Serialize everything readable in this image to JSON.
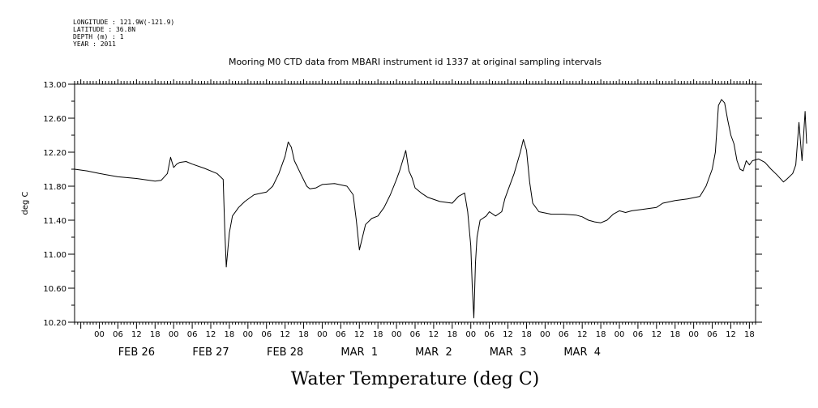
{
  "metadata": {
    "longitude": "LONGITUDE : 121.9W(-121.9)",
    "latitude": "LATITUDE : 36.8N",
    "depth": "DEPTH (m) : 1",
    "year": "YEAR : 2011"
  },
  "chart_data": {
    "type": "line",
    "title": "Mooring M0 CTD data from MBARI instrument id 1337 at original sampling intervals",
    "xlabel": "Water Temperature (deg C)",
    "ylabel": "deg C",
    "ylim": [
      10.2,
      13.0
    ],
    "xlim_hours": [
      -8,
      212
    ],
    "yticks": [
      "13.00",
      "12.60",
      "12.20",
      "11.80",
      "11.40",
      "11.00",
      "10.60",
      "10.20"
    ],
    "hour_tick_labels": [
      "00",
      "06",
      "12",
      "18"
    ],
    "day_labels": [
      "FEB 26",
      "FEB 27",
      "FEB 28",
      "MAR  1",
      "MAR  2",
      "MAR  3",
      "MAR  4"
    ],
    "grid": false,
    "series": [
      {
        "points": [
          [
            -8,
            12.0
          ],
          [
            -4,
            11.98
          ],
          [
            0,
            11.95
          ],
          [
            6,
            11.91
          ],
          [
            12,
            11.89
          ],
          [
            18,
            11.86
          ],
          [
            20,
            11.87
          ],
          [
            22,
            11.95
          ],
          [
            23,
            12.14
          ],
          [
            24,
            12.02
          ],
          [
            25,
            12.06
          ],
          [
            26,
            12.08
          ],
          [
            28,
            12.09
          ],
          [
            30,
            12.06
          ],
          [
            34,
            12.01
          ],
          [
            38,
            11.95
          ],
          [
            40,
            11.88
          ],
          [
            40.5,
            11.3
          ],
          [
            41,
            10.85
          ],
          [
            41.5,
            11.05
          ],
          [
            42,
            11.25
          ],
          [
            43,
            11.45
          ],
          [
            45,
            11.55
          ],
          [
            47,
            11.62
          ],
          [
            50,
            11.7
          ],
          [
            54,
            11.73
          ],
          [
            56,
            11.8
          ],
          [
            58,
            11.95
          ],
          [
            60,
            12.15
          ],
          [
            61,
            12.32
          ],
          [
            62,
            12.26
          ],
          [
            63,
            12.1
          ],
          [
            65,
            11.95
          ],
          [
            67,
            11.8
          ],
          [
            68,
            11.77
          ],
          [
            70,
            11.78
          ],
          [
            72,
            11.82
          ],
          [
            76,
            11.83
          ],
          [
            80,
            11.8
          ],
          [
            82,
            11.7
          ],
          [
            83,
            11.4
          ],
          [
            84,
            11.05
          ],
          [
            85,
            11.2
          ],
          [
            86,
            11.35
          ],
          [
            88,
            11.42
          ],
          [
            90,
            11.45
          ],
          [
            92,
            11.55
          ],
          [
            94,
            11.7
          ],
          [
            96,
            11.88
          ],
          [
            97,
            11.98
          ],
          [
            98,
            12.1
          ],
          [
            99,
            12.22
          ],
          [
            100,
            11.98
          ],
          [
            101,
            11.9
          ],
          [
            102,
            11.78
          ],
          [
            104,
            11.72
          ],
          [
            106,
            11.67
          ],
          [
            110,
            11.62
          ],
          [
            114,
            11.6
          ],
          [
            116,
            11.68
          ],
          [
            118,
            11.72
          ],
          [
            119,
            11.5
          ],
          [
            120,
            11.1
          ],
          [
            120.5,
            10.6
          ],
          [
            121,
            10.25
          ],
          [
            121.5,
            10.9
          ],
          [
            122,
            11.2
          ],
          [
            123,
            11.4
          ],
          [
            125,
            11.45
          ],
          [
            126,
            11.5
          ],
          [
            128,
            11.45
          ],
          [
            130,
            11.5
          ],
          [
            131,
            11.65
          ],
          [
            132,
            11.75
          ],
          [
            134,
            11.95
          ],
          [
            136,
            12.2
          ],
          [
            137,
            12.35
          ],
          [
            138,
            12.22
          ],
          [
            139,
            11.85
          ],
          [
            140,
            11.6
          ],
          [
            142,
            11.5
          ],
          [
            146,
            11.47
          ],
          [
            150,
            11.47
          ],
          [
            154,
            11.46
          ],
          [
            156,
            11.44
          ],
          [
            158,
            11.4
          ],
          [
            160,
            11.38
          ],
          [
            162,
            11.37
          ],
          [
            164,
            11.4
          ],
          [
            166,
            11.47
          ],
          [
            168,
            11.51
          ],
          [
            170,
            11.49
          ],
          [
            172,
            11.51
          ],
          [
            176,
            11.53
          ],
          [
            180,
            11.55
          ],
          [
            182,
            11.6
          ],
          [
            186,
            11.63
          ],
          [
            190,
            11.65
          ],
          [
            194,
            11.68
          ],
          [
            196,
            11.8
          ],
          [
            198,
            12.0
          ],
          [
            199,
            12.2
          ],
          [
            200,
            12.75
          ],
          [
            201,
            12.82
          ],
          [
            202,
            12.78
          ],
          [
            203,
            12.58
          ],
          [
            204,
            12.4
          ],
          [
            205,
            12.3
          ],
          [
            206,
            12.1
          ],
          [
            207,
            12.0
          ],
          [
            208,
            11.98
          ],
          [
            209,
            12.1
          ],
          [
            210,
            12.05
          ],
          [
            211,
            12.1
          ],
          [
            213,
            12.12
          ],
          [
            215,
            12.08
          ],
          [
            217,
            12.0
          ],
          [
            219,
            11.93
          ],
          [
            221,
            11.85
          ],
          [
            222,
            11.88
          ],
          [
            224,
            11.95
          ],
          [
            225,
            12.05
          ],
          [
            226,
            12.55
          ],
          [
            227,
            12.1
          ],
          [
            228,
            12.68
          ],
          [
            228.5,
            12.3
          ]
        ]
      }
    ]
  }
}
